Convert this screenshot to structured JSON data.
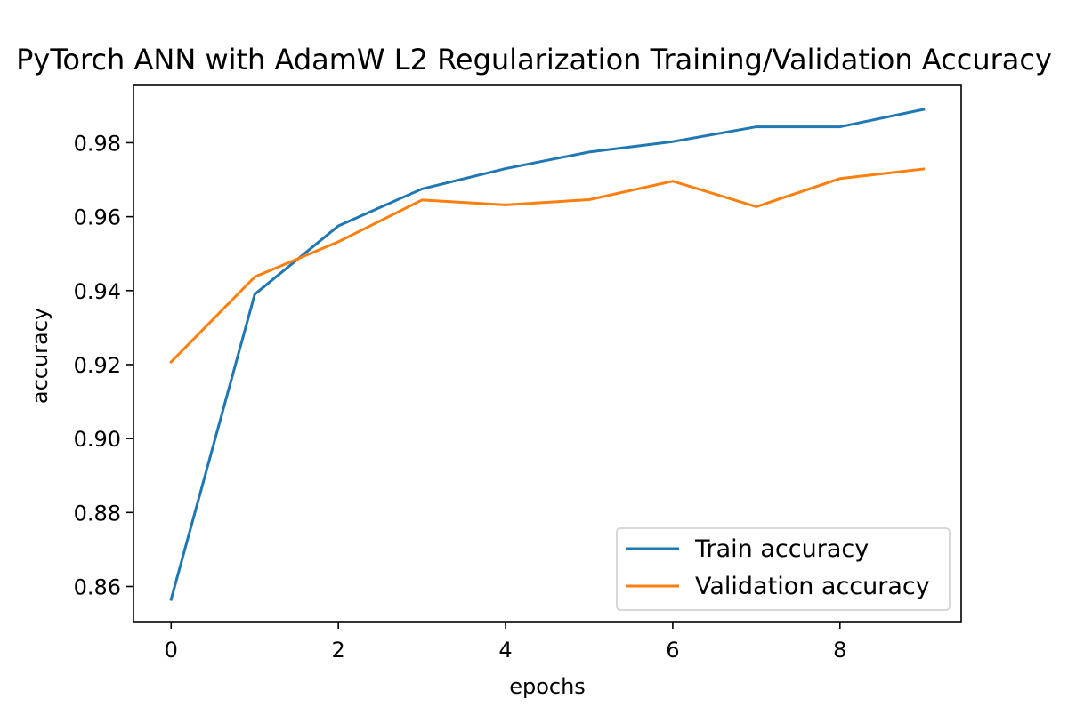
{
  "chart_data": {
    "type": "line",
    "title": "PyTorch ANN with AdamW L2 Regularization Training/Validation Accuracy",
    "xlabel": "epochs",
    "ylabel": "accuracy",
    "x": [
      0,
      1,
      2,
      3,
      4,
      5,
      6,
      7,
      8,
      9
    ],
    "xlim": [
      -0.45,
      9.45
    ],
    "ylim": [
      0.8505,
      0.9955
    ],
    "xticks": [
      0,
      2,
      4,
      6,
      8
    ],
    "xtick_labels": [
      "0",
      "2",
      "4",
      "6",
      "8"
    ],
    "yticks": [
      0.86,
      0.88,
      0.9,
      0.92,
      0.94,
      0.96,
      0.98
    ],
    "ytick_labels": [
      "0.86",
      "0.88",
      "0.90",
      "0.92",
      "0.94",
      "0.96",
      "0.98"
    ],
    "grid": false,
    "legend_position": "lower-right",
    "series": [
      {
        "name": "Train accuracy",
        "color": "#1f77b4",
        "values": [
          0.8565,
          0.939,
          0.9575,
          0.9675,
          0.973,
          0.9775,
          0.9803,
          0.9843,
          0.9843,
          0.989
        ]
      },
      {
        "name": "Validation accuracy",
        "color": "#ff7f0e",
        "values": [
          0.9207,
          0.9437,
          0.9532,
          0.9645,
          0.9632,
          0.9646,
          0.9696,
          0.9627,
          0.9703,
          0.9729
        ]
      }
    ]
  }
}
